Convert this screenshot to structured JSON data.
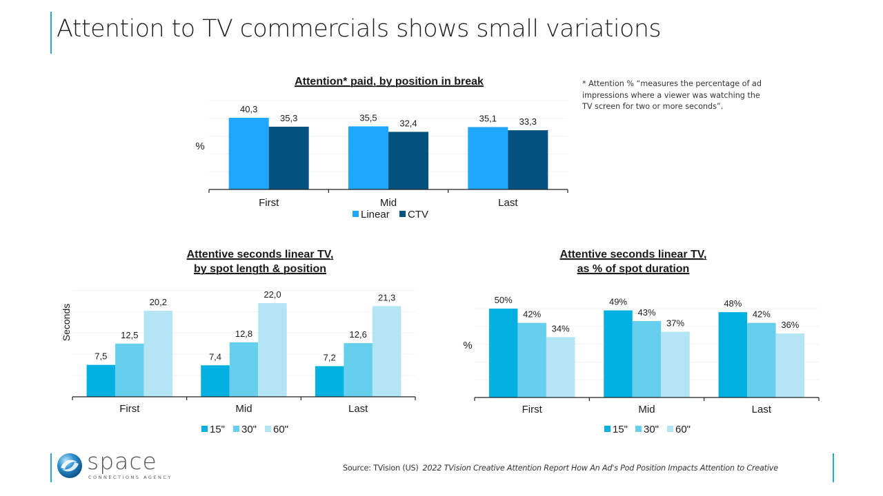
{
  "slide": {
    "title": "Attention to TV commercials shows small variations",
    "footnote": "* Attention % “measures the percentage of ad impressions where a viewer was watching the TV screen for two or more seconds”.",
    "source_prefix": "Source: TVision (US)",
    "source_title": "2022 TVision Creative Attention Report How An Ad's Pod Position Impacts Attention to Creative",
    "logo": {
      "word": "space",
      "subtitle": "CONNECTIONS AGENCY",
      "icon": "sphere-swirl-icon"
    },
    "colors": {
      "accent": "#2aa9c9"
    }
  },
  "chart_data": [
    {
      "id": "attention-by-position",
      "type": "bar",
      "title": "Attention* paid, by position in break",
      "xlabel": "",
      "ylabel": "%",
      "categories": [
        "First",
        "Mid",
        "Last"
      ],
      "series": [
        {
          "name": "Linear",
          "color": "#1ea7fd",
          "values": [
            40.3,
            35.5,
            35.1
          ],
          "labels": [
            "40,3",
            "35,5",
            "35,1"
          ]
        },
        {
          "name": "CTV",
          "color": "#03527f",
          "values": [
            35.3,
            32.4,
            33.3
          ],
          "labels": [
            "35,3",
            "32,4",
            "33,3"
          ]
        }
      ],
      "ylim": [
        0,
        50
      ],
      "grid": true,
      "legend": "bottom"
    },
    {
      "id": "attentive-seconds",
      "type": "bar",
      "title": "Attentive seconds linear TV,\nby spot length & position",
      "title_lines": [
        "Attentive seconds linear TV,",
        "by spot length & position"
      ],
      "xlabel": "",
      "ylabel": "Seconds",
      "categories": [
        "First",
        "Mid",
        "Last"
      ],
      "series": [
        {
          "name": "15''",
          "color": "#00b0e0",
          "values": [
            7.5,
            7.4,
            7.2
          ],
          "labels": [
            "7,5",
            "7,4",
            "7,2"
          ]
        },
        {
          "name": "30''",
          "color": "#66cfee",
          "values": [
            12.5,
            12.8,
            12.6
          ],
          "labels": [
            "12,5",
            "12,8",
            "12,6"
          ]
        },
        {
          "name": "60''",
          "color": "#b3e5f5",
          "values": [
            20.2,
            22.0,
            21.3
          ],
          "labels": [
            "20,2",
            "22,0",
            "21,3"
          ]
        }
      ],
      "ylim": [
        0,
        25
      ],
      "grid": true,
      "legend": "bottom"
    },
    {
      "id": "attentive-pct-duration",
      "type": "bar",
      "title": "Attentive seconds linear TV,\nas % of spot duration",
      "title_lines": [
        "Attentive seconds linear TV,",
        "as % of spot duration"
      ],
      "xlabel": "",
      "ylabel": "%",
      "categories": [
        "First",
        "Mid",
        "Last"
      ],
      "series": [
        {
          "name": "15''",
          "color": "#00b0e0",
          "values": [
            50,
            49,
            48
          ],
          "labels": [
            "50%",
            "49%",
            "48%"
          ]
        },
        {
          "name": "30''",
          "color": "#66cfee",
          "values": [
            42,
            43,
            42
          ],
          "labels": [
            "42%",
            "43%",
            "42%"
          ]
        },
        {
          "name": "60''",
          "color": "#b3e5f5",
          "values": [
            34,
            37,
            36
          ],
          "labels": [
            "34%",
            "37%",
            "36%"
          ]
        }
      ],
      "ylim": [
        0,
        60
      ],
      "grid": true,
      "legend": "bottom"
    }
  ]
}
